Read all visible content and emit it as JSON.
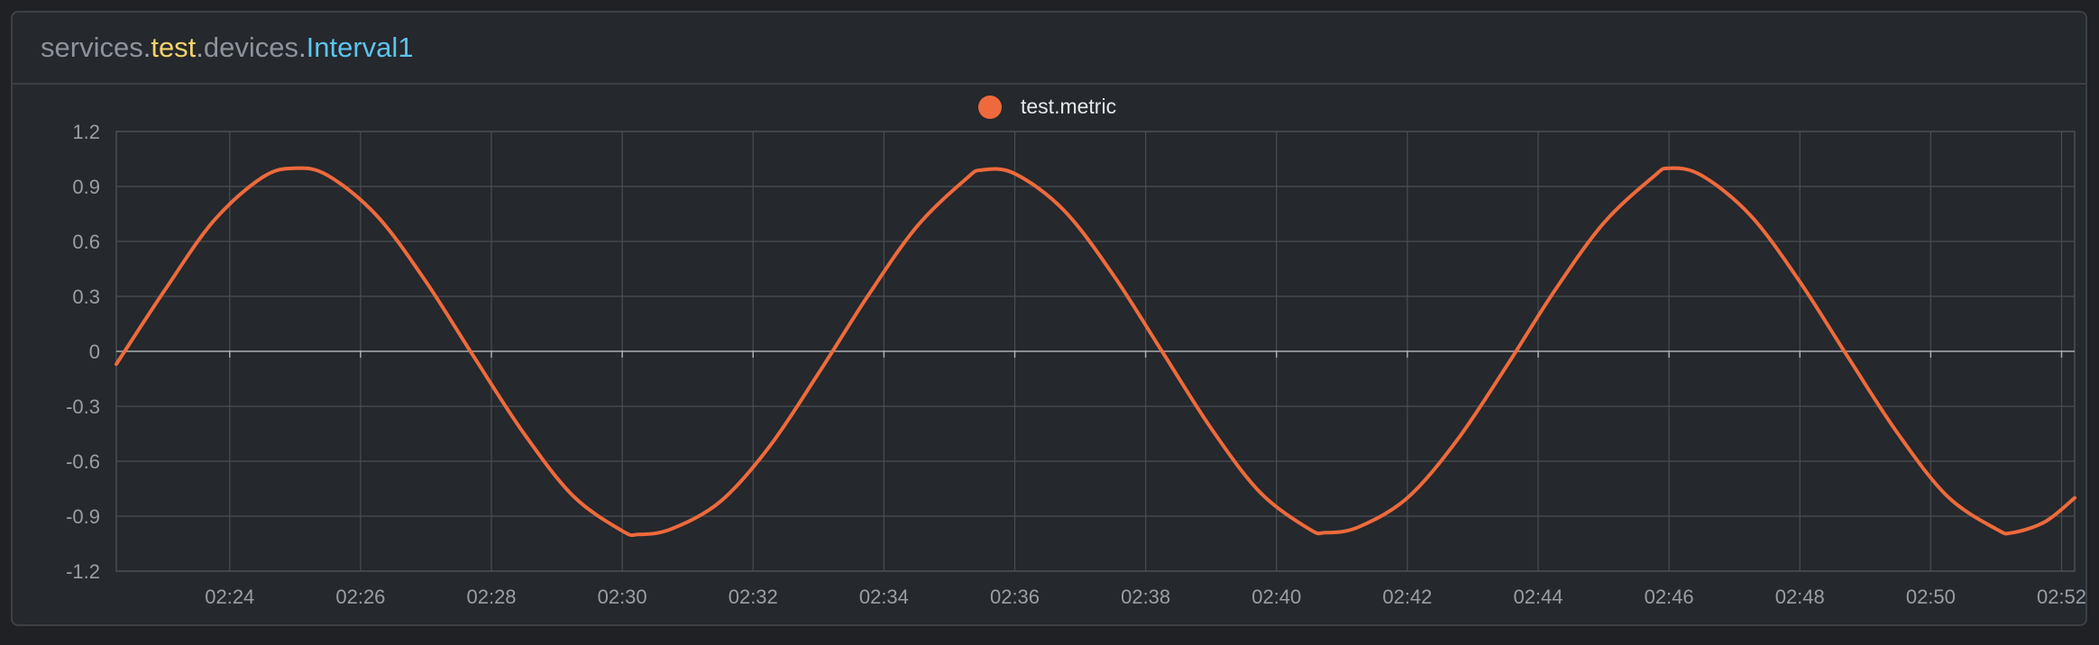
{
  "header": {
    "segments": [
      {
        "text": "services",
        "color": "#8d939b"
      },
      {
        "text": ".",
        "color": "#9da3ab"
      },
      {
        "text": "test",
        "color": "#f2d46b"
      },
      {
        "text": ".",
        "color": "#9da3ab"
      },
      {
        "text": "devices",
        "color": "#8d939b"
      },
      {
        "text": ".",
        "color": "#9da3ab"
      },
      {
        "text": "Interval1",
        "color": "#5dc4ee"
      }
    ]
  },
  "colors": {
    "background": "#1f2124",
    "panel": "#25282c",
    "grid": "#4a4e54",
    "zero_line": "#a9adb3",
    "tick_text": "#9a9fa6",
    "series": "#ee6a3c"
  },
  "chart_data": {
    "type": "line",
    "legend": {
      "placement": "top-center",
      "entries": [
        "test.metric"
      ]
    },
    "grid": true,
    "xlim": [
      "02:22:16",
      "02:52:12"
    ],
    "ylim": [
      -1.2,
      1.2
    ],
    "x_ticks": [
      "02:24",
      "02:26",
      "02:28",
      "02:30",
      "02:32",
      "02:34",
      "02:36",
      "02:38",
      "02:40",
      "02:42",
      "02:44",
      "02:46",
      "02:48",
      "02:50",
      "02:52"
    ],
    "y_ticks": [
      "1.2",
      "0.9",
      "0.6",
      "0.3",
      "0",
      "-0.3",
      "-0.6",
      "-0.9",
      "-1.2"
    ],
    "series": [
      {
        "name": "test.metric",
        "color": "#ee6a3c",
        "x": [
          "02:22:16",
          "02:23:00",
          "02:23:45",
          "02:24:30",
          "02:25:00",
          "02:25:30",
          "02:26:15",
          "02:27:00",
          "02:27:45",
          "02:28:30",
          "02:29:15",
          "02:30:00",
          "02:30:15",
          "02:30:45",
          "02:31:30",
          "02:32:15",
          "02:33:00",
          "02:33:45",
          "02:34:30",
          "02:35:15",
          "02:35:30",
          "02:36:00",
          "02:36:45",
          "02:37:30",
          "02:38:15",
          "02:39:00",
          "02:39:45",
          "02:40:30",
          "02:40:45",
          "02:41:15",
          "02:42:00",
          "02:42:45",
          "02:43:30",
          "02:44:15",
          "02:45:00",
          "02:45:45",
          "02:46:00",
          "02:46:30",
          "02:47:15",
          "02:48:00",
          "02:48:45",
          "02:49:30",
          "02:50:15",
          "02:51:00",
          "02:51:15",
          "02:51:45",
          "02:52:12"
        ],
        "y": [
          -0.07,
          0.33,
          0.71,
          0.95,
          1.0,
          0.96,
          0.74,
          0.38,
          -0.04,
          -0.45,
          -0.79,
          -0.98,
          -1.0,
          -0.97,
          -0.82,
          -0.52,
          -0.12,
          0.3,
          0.68,
          0.94,
          0.99,
          0.97,
          0.77,
          0.42,
          0.0,
          -0.42,
          -0.77,
          -0.97,
          -0.99,
          -0.96,
          -0.8,
          -0.49,
          -0.09,
          0.33,
          0.7,
          0.95,
          1.0,
          0.96,
          0.74,
          0.38,
          -0.04,
          -0.45,
          -0.79,
          -0.97,
          -0.99,
          -0.93,
          -0.8
        ]
      }
    ]
  }
}
